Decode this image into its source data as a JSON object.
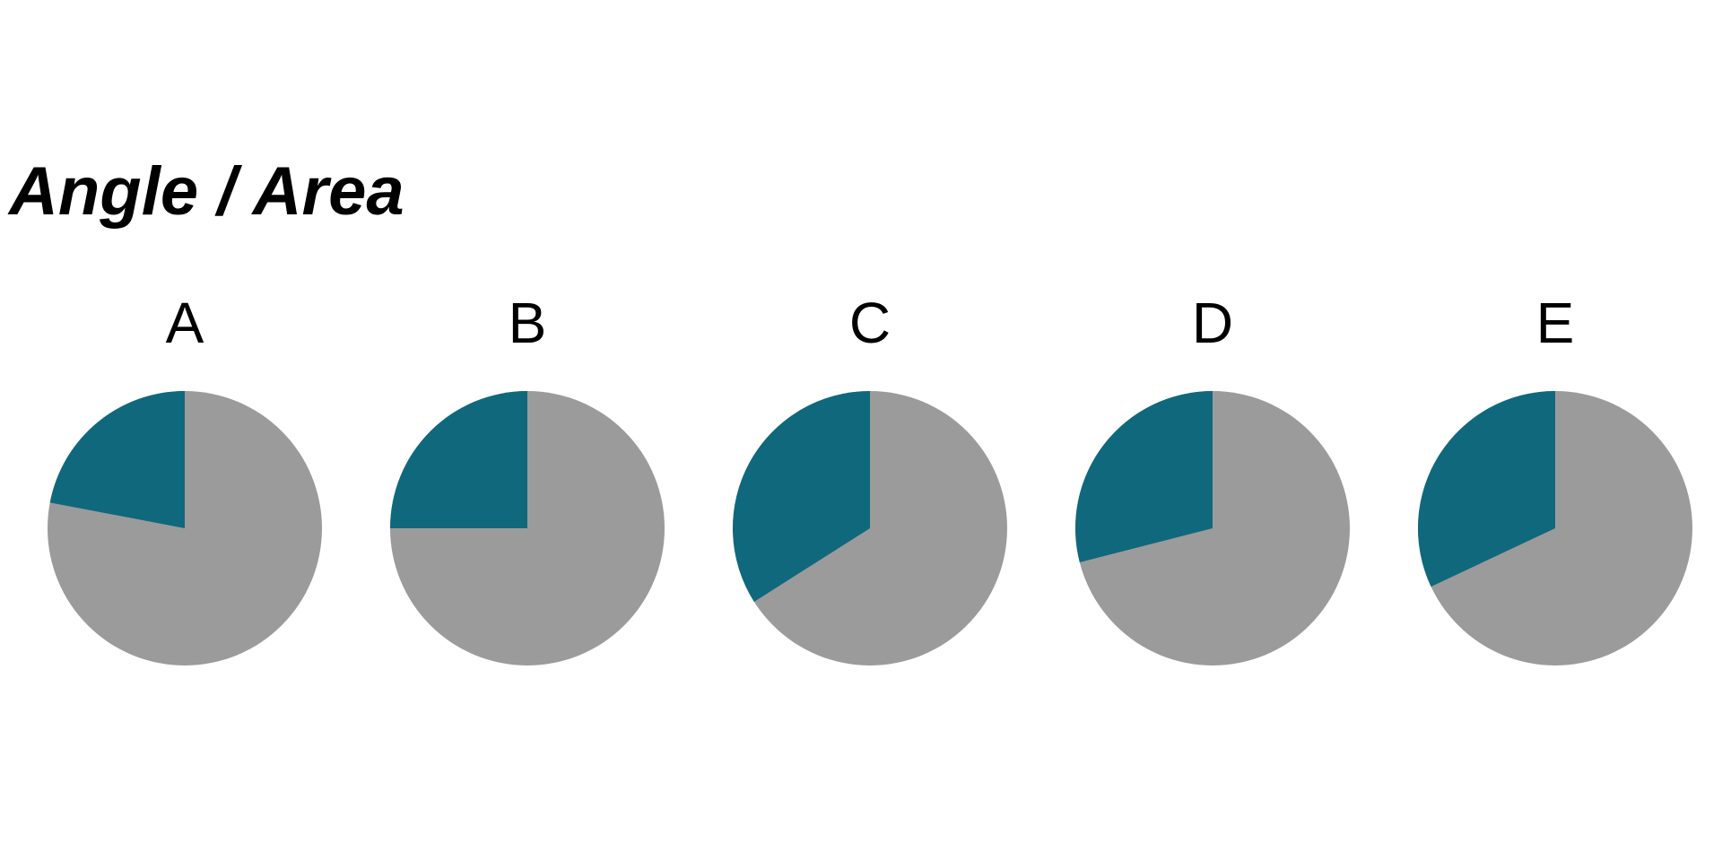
{
  "chart_data": {
    "type": "pie",
    "title": "Angle / Area",
    "colors": {
      "highlight": "#10687D",
      "remainder": "#9B9B9B"
    },
    "start_angle": "12 o'clock",
    "direction": "counterclockwise",
    "charts": [
      {
        "label": "A",
        "highlight_percent": 22
      },
      {
        "label": "B",
        "highlight_percent": 25
      },
      {
        "label": "C",
        "highlight_percent": 34
      },
      {
        "label": "D",
        "highlight_percent": 29
      },
      {
        "label": "E",
        "highlight_percent": 32
      }
    ]
  }
}
